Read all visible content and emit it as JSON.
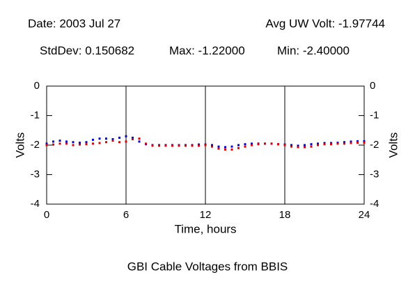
{
  "chart_data": {
    "type": "line",
    "annotations": [
      "Date: 2003 Jul 27",
      "Avg UW Volt: -1.97744",
      "StdDev: 0.150682",
      "Max: -1.22000",
      "Min: -2.40000"
    ],
    "title": "GBI Cable Voltages from BBIS",
    "xlabel": "Time, hours",
    "ylabel": "Volts",
    "y2label": "Volts",
    "x": [
      0,
      0.5,
      1,
      1.5,
      2,
      2.5,
      3,
      3.5,
      4,
      4.5,
      5,
      5.5,
      6,
      6.5,
      7,
      7.5,
      8,
      8.5,
      9,
      9.5,
      10,
      10.5,
      11,
      11.5,
      12,
      12.5,
      13,
      13.5,
      14,
      14.5,
      15,
      15.5,
      16,
      16.5,
      17,
      17.5,
      18,
      18.5,
      19,
      19.5,
      20,
      20.5,
      21,
      21.5,
      22,
      22.5,
      23,
      23.5,
      24
    ],
    "series": [
      {
        "color": "#0000cc",
        "values": [
          -1.95,
          -1.88,
          -1.85,
          -1.88,
          -1.9,
          -1.92,
          -1.9,
          -1.82,
          -1.78,
          -1.78,
          -1.8,
          -1.75,
          -1.7,
          -1.75,
          -1.88,
          -1.97,
          -2.0,
          -2.0,
          -2.0,
          -2.0,
          -2.0,
          -2.0,
          -2.0,
          -1.98,
          -1.98,
          -2.0,
          -2.05,
          -2.07,
          -2.05,
          -2.0,
          -1.97,
          -1.95,
          -1.95,
          -1.95,
          -1.95,
          -1.97,
          -1.98,
          -2.0,
          -2.02,
          -2.0,
          -1.97,
          -1.95,
          -1.93,
          -1.93,
          -1.92,
          -1.9,
          -1.88,
          -1.87,
          -1.87
        ]
      },
      {
        "color": "#dd0000",
        "values": [
          -2.0,
          -1.98,
          -1.95,
          -1.95,
          -2.0,
          -1.98,
          -1.97,
          -1.95,
          -1.93,
          -1.9,
          -1.85,
          -1.9,
          -1.88,
          -1.8,
          -1.78,
          -1.95,
          -2.02,
          -2.02,
          -2.02,
          -2.02,
          -2.02,
          -2.02,
          -2.02,
          -2.02,
          -2.0,
          -2.05,
          -2.12,
          -2.15,
          -2.15,
          -2.1,
          -2.05,
          -2.0,
          -1.97,
          -1.95,
          -1.95,
          -1.97,
          -2.0,
          -2.05,
          -2.07,
          -2.07,
          -2.05,
          -2.0,
          -1.97,
          -1.97,
          -1.95,
          -1.95,
          -1.93,
          -1.92,
          -1.92
        ]
      }
    ],
    "xlim": [
      0,
      24
    ],
    "xticks": [
      0,
      6,
      12,
      18,
      24
    ],
    "ylim": [
      -4,
      0
    ],
    "yticks": [
      0,
      -1,
      -2,
      -3,
      -4
    ],
    "grid": "x"
  }
}
